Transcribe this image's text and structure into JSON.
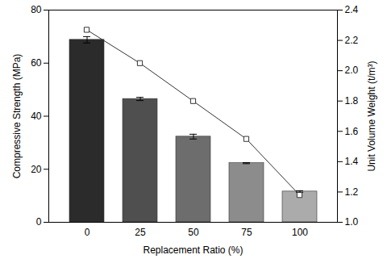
{
  "chart_data": {
    "type": "bar",
    "xlabel": "Replacement Ratio (%)",
    "ylabel": "Compressive Strength (MPa)",
    "y2label": "Unit Volume Weight (t/m³)",
    "categories": [
      0,
      25,
      50,
      75,
      100
    ],
    "ylim": [
      0,
      80
    ],
    "yticks": [
      0,
      20,
      40,
      60,
      80
    ],
    "y2lim": [
      1.0,
      2.4
    ],
    "y2ticks": [
      {
        "value": 1.0,
        "label": "1.0"
      },
      1.2,
      1.4,
      1.6,
      1.8,
      {
        "value": 2.0,
        "label": "2.0"
      },
      2.2,
      2.4
    ],
    "grid": false,
    "series": [
      {
        "type": "bar",
        "colors": [
          "#2b2b2b",
          "#4f4f4f",
          "#6d6d6d",
          "#8c8c8c",
          "#ababab"
        ],
        "values": [
          68.8,
          46.5,
          32.3,
          22.3,
          11.6
        ],
        "errors": [
          1.2,
          0.6,
          0.9,
          0.2,
          0.3
        ]
      },
      {
        "type": "line",
        "axis": "y2",
        "color": "#333333",
        "marker": "square",
        "line_style": "solid",
        "values": [
          2.27,
          2.05,
          1.8,
          1.55,
          1.18
        ]
      }
    ]
  }
}
